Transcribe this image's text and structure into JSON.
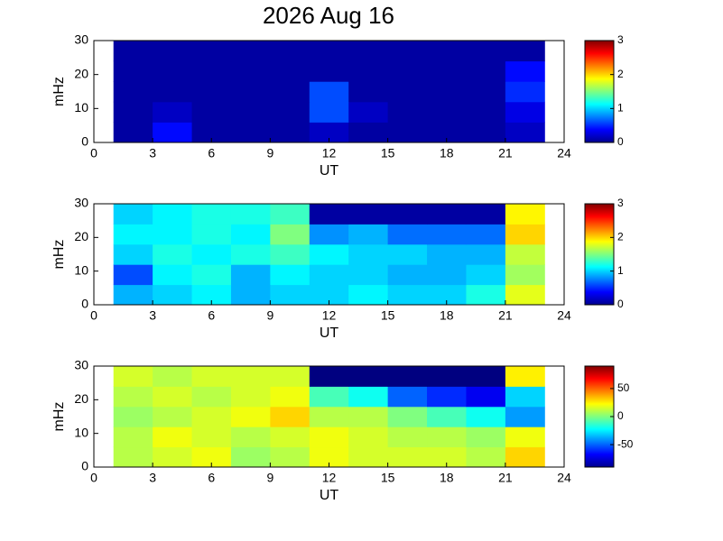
{
  "chart_data": [
    {
      "type": "heatmap",
      "title": "2026 Aug 16",
      "xlabel": "UT",
      "ylabel": "mHz",
      "xlim": [
        0,
        24
      ],
      "xticks": [
        0,
        3,
        6,
        9,
        12,
        15,
        18,
        21,
        24
      ],
      "ylim": [
        0,
        30
      ],
      "yticks": [
        0,
        10,
        20,
        30
      ],
      "x": [
        1,
        3,
        5,
        7,
        9,
        11,
        13,
        15,
        17,
        19,
        21,
        23
      ],
      "y": [
        0,
        6,
        12,
        18,
        24,
        30
      ],
      "colormap": "jet",
      "clim": [
        0,
        3
      ],
      "cticks": [
        0,
        1,
        2,
        3
      ],
      "values": [
        [
          0.1,
          0.4,
          0.1,
          0.1,
          0.1,
          0.2,
          0.1,
          0.1,
          0.1,
          0.1,
          0.2
        ],
        [
          0.1,
          0.2,
          0.1,
          0.1,
          0.1,
          0.6,
          0.2,
          0.1,
          0.1,
          0.1,
          0.3
        ],
        [
          0.1,
          0.1,
          0.1,
          0.1,
          0.1,
          0.6,
          0.1,
          0.1,
          0.1,
          0.1,
          0.5
        ],
        [
          0.1,
          0.1,
          0.1,
          0.1,
          0.1,
          0.1,
          0.1,
          0.1,
          0.1,
          0.1,
          0.4
        ],
        [
          0.1,
          0.1,
          0.1,
          0.1,
          0.1,
          0.1,
          0.1,
          0.1,
          0.1,
          0.1,
          0.1
        ]
      ]
    },
    {
      "type": "heatmap",
      "xlabel": "UT",
      "ylabel": "mHz",
      "xlim": [
        0,
        24
      ],
      "xticks": [
        0,
        3,
        6,
        9,
        12,
        15,
        18,
        21,
        24
      ],
      "ylim": [
        0,
        30
      ],
      "yticks": [
        0,
        10,
        20,
        30
      ],
      "x": [
        1,
        3,
        5,
        7,
        9,
        11,
        13,
        15,
        17,
        19,
        21,
        23
      ],
      "y": [
        0,
        6,
        12,
        18,
        24,
        30
      ],
      "colormap": "jet",
      "clim": [
        0,
        3
      ],
      "cticks": [
        0,
        1,
        2,
        3
      ],
      "values": [
        [
          0.9,
          1.0,
          1.1,
          0.9,
          1.0,
          1.0,
          1.1,
          1.0,
          1.0,
          1.2,
          1.8
        ],
        [
          0.6,
          1.1,
          1.2,
          0.9,
          1.1,
          1.0,
          1.0,
          0.9,
          0.9,
          1.0,
          1.6
        ],
        [
          1.0,
          1.2,
          1.1,
          1.2,
          1.3,
          1.1,
          1.0,
          1.0,
          0.9,
          0.9,
          1.7
        ],
        [
          1.1,
          1.1,
          1.2,
          1.1,
          1.5,
          0.8,
          0.9,
          0.7,
          0.7,
          0.7,
          2.0
        ],
        [
          1.0,
          1.1,
          1.2,
          1.2,
          1.3,
          0.1,
          0.1,
          0.1,
          0.1,
          0.1,
          1.9
        ]
      ]
    },
    {
      "type": "heatmap",
      "xlabel": "UT",
      "ylabel": "mHz",
      "xlim": [
        0,
        24
      ],
      "xticks": [
        0,
        3,
        6,
        9,
        12,
        15,
        18,
        21,
        24
      ],
      "ylim": [
        0,
        30
      ],
      "yticks": [
        0,
        10,
        20,
        30
      ],
      "x": [
        1,
        3,
        5,
        7,
        9,
        11,
        13,
        15,
        17,
        19,
        21,
        23
      ],
      "y": [
        0,
        6,
        12,
        18,
        24,
        30
      ],
      "colormap": "jet",
      "clim": [
        -90,
        90
      ],
      "cticks": [
        -50,
        0,
        50
      ],
      "values": [
        [
          10,
          15,
          20,
          5,
          10,
          20,
          15,
          15,
          15,
          10,
          30
        ],
        [
          10,
          20,
          15,
          10,
          15,
          20,
          15,
          10,
          10,
          5,
          20
        ],
        [
          5,
          10,
          15,
          20,
          30,
          10,
          10,
          0,
          -10,
          -20,
          -40
        ],
        [
          10,
          15,
          10,
          15,
          20,
          -10,
          -20,
          -50,
          -60,
          -70,
          -30
        ],
        [
          15,
          10,
          15,
          15,
          15,
          -90,
          -90,
          -90,
          -90,
          -90,
          25
        ]
      ]
    }
  ]
}
